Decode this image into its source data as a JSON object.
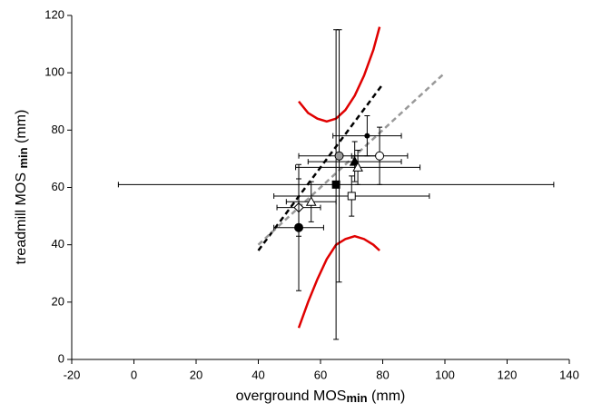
{
  "chart_data": {
    "type": "scatter",
    "xlabel": {
      "text": "overground MOS",
      "sub": "min",
      "unit": " (mm)"
    },
    "ylabel": {
      "text": "treadmill MOS ",
      "sub": "min",
      "unit": " (mm)"
    },
    "xlim": [
      -20,
      140
    ],
    "xticks": [
      -20,
      0,
      20,
      40,
      60,
      80,
      100,
      120,
      140
    ],
    "ylim": [
      0,
      120
    ],
    "yticks": [
      0,
      20,
      40,
      60,
      80,
      100,
      120
    ],
    "points": [
      {
        "x": 65,
        "y": 61,
        "xerr": 70,
        "yerr": 54,
        "marker": "square",
        "fill": "#000"
      },
      {
        "x": 66,
        "y": 71,
        "xerr": 13,
        "yerr": 44,
        "marker": "circle",
        "fill": "#999"
      },
      {
        "x": 79,
        "y": 71,
        "xerr": 9,
        "yerr": 10,
        "marker": "circle",
        "fill": "#fff"
      },
      {
        "x": 75,
        "y": 78,
        "xerr": 11,
        "yerr": 7,
        "marker": "smallcircle",
        "fill": "#000"
      },
      {
        "x": 71,
        "y": 69,
        "xerr": 15,
        "yerr": 7,
        "marker": "triangle",
        "fill": "#000"
      },
      {
        "x": 72,
        "y": 67,
        "xerr": 20,
        "yerr": 6,
        "marker": "triangle",
        "fill": "#fff"
      },
      {
        "x": 70,
        "y": 57,
        "xerr": 25,
        "yerr": 7,
        "marker": "square",
        "fill": "#fff"
      },
      {
        "x": 57,
        "y": 55,
        "xerr": 8,
        "yerr": 7,
        "marker": "triangle",
        "fill": "#fff"
      },
      {
        "x": 53,
        "y": 53,
        "xerr": 7,
        "yerr": 10,
        "marker": "diamond",
        "fill": "#fff"
      },
      {
        "x": 53,
        "y": 46,
        "xerr": 8,
        "yerr": 22,
        "marker": "circle",
        "fill": "#000"
      }
    ],
    "lines": [
      {
        "color": "#e00000",
        "dash": "none",
        "x": [
          53,
          56,
          59,
          62,
          65,
          68,
          71,
          74,
          77,
          79
        ],
        "y": [
          90,
          86,
          84,
          83,
          84,
          87,
          92,
          99,
          108,
          116
        ]
      },
      {
        "color": "#e00000",
        "dash": "none",
        "x": [
          53,
          56,
          59,
          62,
          65,
          68,
          71,
          74,
          77,
          79
        ],
        "y": [
          11,
          20,
          28,
          35,
          40,
          42,
          43,
          42,
          40,
          38
        ]
      },
      {
        "color": "#000000",
        "dash": "6 4",
        "x": [
          40,
          80
        ],
        "y": [
          38,
          96
        ]
      },
      {
        "color": "#999999",
        "dash": "6 4",
        "x": [
          40,
          100
        ],
        "y": [
          40,
          100
        ]
      }
    ]
  }
}
